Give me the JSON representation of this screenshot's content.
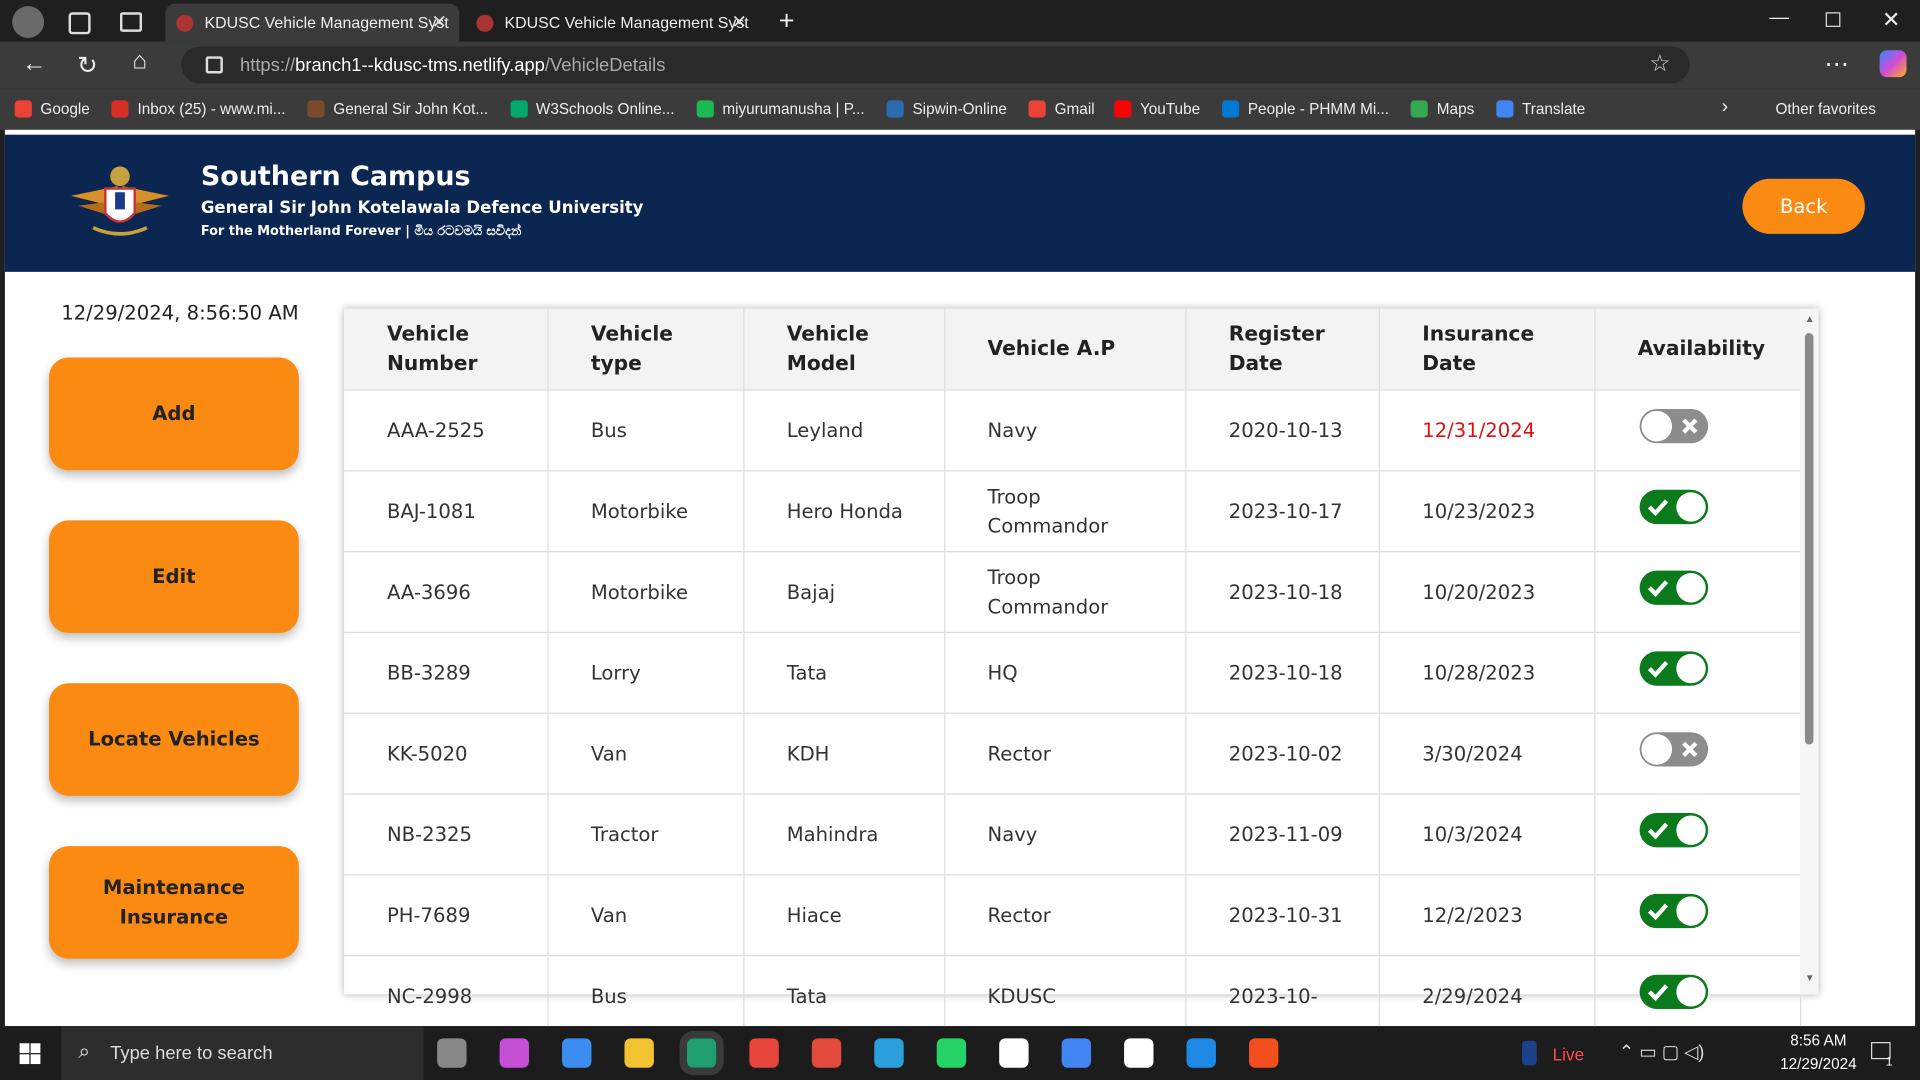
{
  "browser": {
    "tabs": [
      "KDUSC Vehicle Management Syst",
      "KDUSC Vehicle Management Syst"
    ],
    "url_scheme": "https://",
    "url_host": "branch1--kdusc-tms.netlify.app",
    "url_path": "/VehicleDetails",
    "bookmarks": [
      "Google",
      "Inbox (25) - www.mi...",
      "General Sir John Kot...",
      "W3Schools Online...",
      "miyurumanusha | P...",
      "Sipwin-Online",
      "Gmail",
      "YouTube",
      "People - PHMM Mi...",
      "Maps",
      "Translate"
    ],
    "other_favorites": "Other favorites"
  },
  "header": {
    "title": "Southern Campus",
    "subtitle": "General Sir John Kotelawala Defence University",
    "motto": "For the Motherland Forever | මිය රටවමයි සවිදන්",
    "back_button": "Back"
  },
  "datetime": "12/29/2024, 8:56:50 AM",
  "sidebar": [
    "Add",
    "Edit",
    "Locate Vehicles",
    "Maintenance Insurance"
  ],
  "table": {
    "columns": [
      "Vehicle Number",
      "Vehicle type",
      "Vehicle Model",
      "Vehicle A.P",
      "Register Date",
      "Insurance Date",
      "Availability"
    ],
    "rows": [
      {
        "cells": [
          "AAA-2525",
          "Bus",
          "Leyland",
          "Navy",
          "2020-10-13",
          "12/31/2024"
        ],
        "available": false,
        "insurance_alert": true
      },
      {
        "cells": [
          "BAJ-1081",
          "Motorbike",
          "Hero Honda",
          "Troop Commandor",
          "2023-10-17",
          "10/23/2023"
        ],
        "available": true,
        "insurance_alert": false
      },
      {
        "cells": [
          "AA-3696",
          "Motorbike",
          "Bajaj",
          "Troop Commandor",
          "2023-10-18",
          "10/20/2023"
        ],
        "available": true,
        "insurance_alert": false
      },
      {
        "cells": [
          "BB-3289",
          "Lorry",
          "Tata",
          "HQ",
          "2023-10-18",
          "10/28/2023"
        ],
        "available": true,
        "insurance_alert": false
      },
      {
        "cells": [
          "KK-5020",
          "Van",
          "KDH",
          "Rector",
          "2023-10-02",
          "3/30/2024"
        ],
        "available": false,
        "insurance_alert": false
      },
      {
        "cells": [
          "NB-2325",
          "Tractor",
          "Mahindra",
          "Navy",
          "2023-11-09",
          "10/3/2024"
        ],
        "available": true,
        "insurance_alert": false
      },
      {
        "cells": [
          "PH-7689",
          "Van",
          "Hiace",
          "Rector",
          "2023-10-31",
          "12/2/2023"
        ],
        "available": true,
        "insurance_alert": false
      },
      {
        "cells": [
          "NC-2998",
          "Bus",
          "Tata",
          "KDUSC",
          "2023-10-",
          "2/29/2024"
        ],
        "available": true,
        "insurance_alert": false
      }
    ]
  },
  "taskbar": {
    "search": "Type here to search",
    "live": "Live",
    "time": "8:56 AM",
    "date": "12/29/2024",
    "notifications": "1"
  }
}
